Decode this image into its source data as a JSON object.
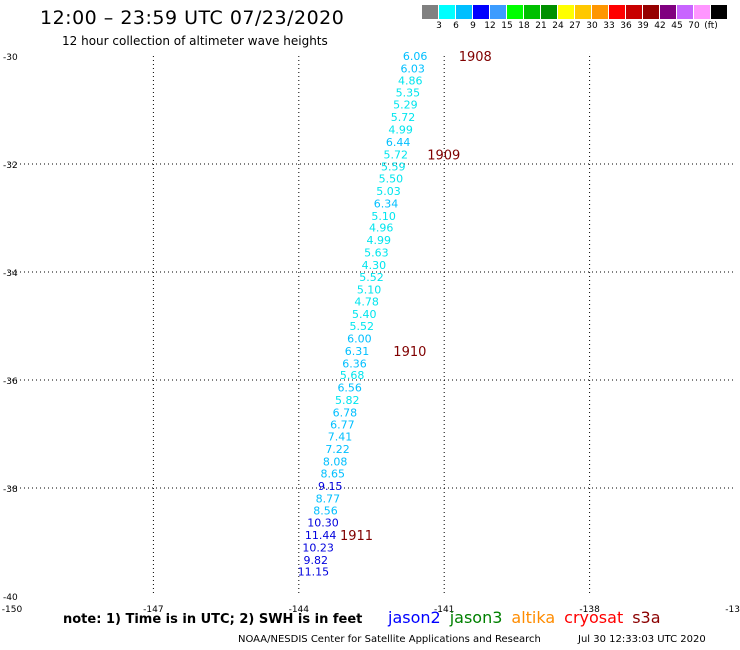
{
  "header": {
    "title": "12:00 – 23:59 UTC 07/23/2020",
    "subtitle": "12 hour collection of altimeter wave heights"
  },
  "color_scale": {
    "colors": [
      "#808080",
      "#00ffff",
      "#00bfff",
      "#0000ff",
      "#3c9cff",
      "#00ff00",
      "#00c000",
      "#009000",
      "#ffff00",
      "#ffc800",
      "#ff9600",
      "#ff0000",
      "#c80000",
      "#960000",
      "#800080",
      "#c864ff",
      "#ff96ff",
      "#000000"
    ],
    "labels": [
      "3",
      "6",
      "9",
      "12",
      "15",
      "18",
      "21",
      "24",
      "27",
      "30",
      "33",
      "36",
      "39",
      "42",
      "45",
      "70",
      "(ft)"
    ]
  },
  "axes": {
    "lat_ticks": [
      "-30",
      "-32",
      "-34",
      "-36",
      "-38",
      "-40"
    ],
    "lon_ticks": [
      "-150",
      "-147",
      "-144",
      "-141",
      "-138",
      "-13"
    ]
  },
  "chart_data": {
    "type": "scatter",
    "satellite_track": "jason2",
    "wave_heights_ft": [
      {
        "lon": -141.6,
        "lat": -30.0,
        "swh": "6.06",
        "color": "#00bfff"
      },
      {
        "lon": -141.65,
        "lat": -30.23,
        "swh": "6.03",
        "color": "#00bfff"
      },
      {
        "lon": -141.7,
        "lat": -30.45,
        "swh": "4.86",
        "color": "#00e5ee"
      },
      {
        "lon": -141.75,
        "lat": -30.68,
        "swh": "5.35",
        "color": "#00e5ee"
      },
      {
        "lon": -141.8,
        "lat": -30.9,
        "swh": "5.29",
        "color": "#00e5ee"
      },
      {
        "lon": -141.85,
        "lat": -31.13,
        "swh": "5.72",
        "color": "#00e5ee"
      },
      {
        "lon": -141.9,
        "lat": -31.36,
        "swh": "4.99",
        "color": "#00e5ee"
      },
      {
        "lon": -141.95,
        "lat": -31.59,
        "swh": "6.44",
        "color": "#00bfff"
      },
      {
        "lon": -142.0,
        "lat": -31.82,
        "swh": "5.72",
        "color": "#00e5ee"
      },
      {
        "lon": -142.05,
        "lat": -32.05,
        "swh": "5.59",
        "color": "#00e5ee"
      },
      {
        "lon": -142.1,
        "lat": -32.27,
        "swh": "5.50",
        "color": "#00e5ee"
      },
      {
        "lon": -142.15,
        "lat": -32.5,
        "swh": "5.03",
        "color": "#00e5ee"
      },
      {
        "lon": -142.2,
        "lat": -32.73,
        "swh": "6.34",
        "color": "#00bfff"
      },
      {
        "lon": -142.25,
        "lat": -32.96,
        "swh": "5.10",
        "color": "#00e5ee"
      },
      {
        "lon": -142.3,
        "lat": -33.18,
        "swh": "4.96",
        "color": "#00e5ee"
      },
      {
        "lon": -142.35,
        "lat": -33.41,
        "swh": "4.99",
        "color": "#00e5ee"
      },
      {
        "lon": -142.4,
        "lat": -33.64,
        "swh": "5.63",
        "color": "#00e5ee"
      },
      {
        "lon": -142.45,
        "lat": -33.87,
        "swh": "4.30",
        "color": "#00e5ee"
      },
      {
        "lon": -142.5,
        "lat": -34.09,
        "swh": "5.52",
        "color": "#00e5ee"
      },
      {
        "lon": -142.55,
        "lat": -34.32,
        "swh": "5.10",
        "color": "#00e5ee"
      },
      {
        "lon": -142.6,
        "lat": -34.55,
        "swh": "4.78",
        "color": "#00e5ee"
      },
      {
        "lon": -142.65,
        "lat": -34.78,
        "swh": "5.40",
        "color": "#00e5ee"
      },
      {
        "lon": -142.7,
        "lat": -35.0,
        "swh": "5.52",
        "color": "#00e5ee"
      },
      {
        "lon": -142.75,
        "lat": -35.23,
        "swh": "6.00",
        "color": "#00bfff"
      },
      {
        "lon": -142.8,
        "lat": -35.46,
        "swh": "6.31",
        "color": "#00bfff"
      },
      {
        "lon": -142.85,
        "lat": -35.69,
        "swh": "6.36",
        "color": "#00bfff"
      },
      {
        "lon": -142.9,
        "lat": -35.91,
        "swh": "5.68",
        "color": "#00e5ee"
      },
      {
        "lon": -142.95,
        "lat": -36.14,
        "swh": "6.56",
        "color": "#00bfff"
      },
      {
        "lon": -143.0,
        "lat": -36.37,
        "swh": "5.82",
        "color": "#00e5ee"
      },
      {
        "lon": -143.05,
        "lat": -36.6,
        "swh": "6.78",
        "color": "#00bfff"
      },
      {
        "lon": -143.1,
        "lat": -36.82,
        "swh": "6.77",
        "color": "#00bfff"
      },
      {
        "lon": -143.15,
        "lat": -37.05,
        "swh": "7.41",
        "color": "#00bfff"
      },
      {
        "lon": -143.2,
        "lat": -37.28,
        "swh": "7.22",
        "color": "#00bfff"
      },
      {
        "lon": -143.25,
        "lat": -37.51,
        "swh": "8.08",
        "color": "#00bfff"
      },
      {
        "lon": -143.3,
        "lat": -37.73,
        "swh": "8.65",
        "color": "#00bfff"
      },
      {
        "lon": -143.35,
        "lat": -37.96,
        "swh": "9.15",
        "color": "#0000dd"
      },
      {
        "lon": -143.4,
        "lat": -38.19,
        "swh": "8.77",
        "color": "#00bfff"
      },
      {
        "lon": -143.45,
        "lat": -38.42,
        "swh": "8.56",
        "color": "#00bfff"
      },
      {
        "lon": -143.5,
        "lat": -38.64,
        "swh": "10.30",
        "color": "#0000dd"
      },
      {
        "lon": -143.55,
        "lat": -38.87,
        "swh": "11.44",
        "color": "#0000dd"
      },
      {
        "lon": -143.6,
        "lat": -39.1,
        "swh": "10.23",
        "color": "#0000dd"
      },
      {
        "lon": -143.65,
        "lat": -39.33,
        "swh": "9.82",
        "color": "#0000dd"
      },
      {
        "lon": -143.7,
        "lat": -39.55,
        "swh": "11.15",
        "color": "#0000dd"
      }
    ],
    "time_labels": [
      {
        "lon": -140.7,
        "lat": -30.0,
        "text": "1908"
      },
      {
        "lon": -141.35,
        "lat": -31.82,
        "text": "1909"
      },
      {
        "lon": -142.05,
        "lat": -35.46,
        "text": "1910"
      },
      {
        "lon": -143.15,
        "lat": -38.87,
        "text": "1911"
      }
    ],
    "time_label_color": "#800000",
    "lon_range": [
      -150,
      -135
    ],
    "lat_range": [
      -40,
      -30
    ]
  },
  "note": "note:  1) Time is in UTC;  2) SWH is in feet",
  "legend": [
    {
      "label": "jason2",
      "color": "#0000ff"
    },
    {
      "label": "jason3",
      "color": "#008000"
    },
    {
      "label": "altika",
      "color": "#ff8c00"
    },
    {
      "label": "cryosat",
      "color": "#ff0000"
    },
    {
      "label": "s3a",
      "color": "#8b0000"
    }
  ],
  "footer": {
    "credit": "NOAA/NESDIS Center for Satellite Applications and Research",
    "timestamp": "Jul 30 12:33:03 UTC 2020"
  }
}
